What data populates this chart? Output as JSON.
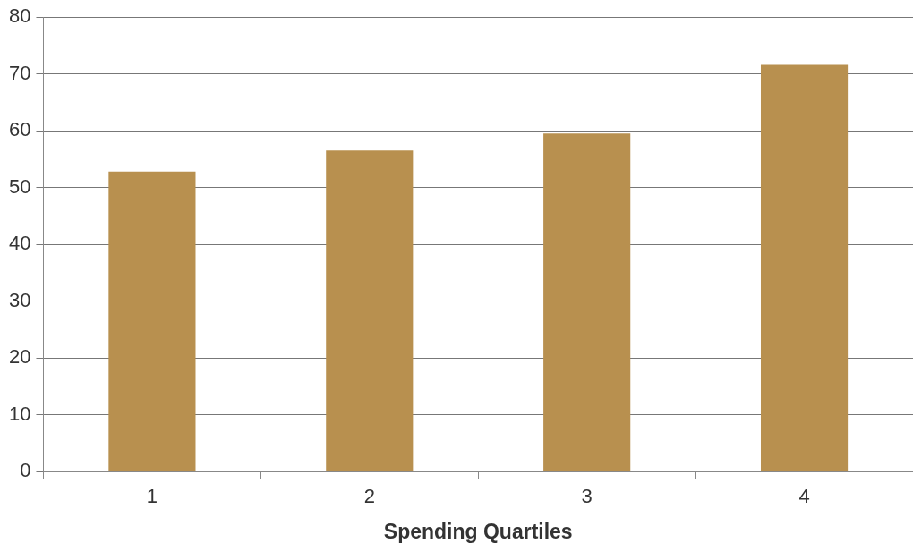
{
  "chart_data": {
    "type": "bar",
    "xlabel": "Spending Quartiles",
    "categories": [
      "1",
      "2",
      "3",
      "4"
    ],
    "values": [
      52.8,
      56.5,
      59.5,
      71.6
    ],
    "color": "#b8904f",
    "ylim": [
      0,
      80
    ],
    "yticks": [
      0,
      10,
      20,
      30,
      40,
      50,
      60,
      70,
      80
    ],
    "grid": "y",
    "legend": false
  }
}
